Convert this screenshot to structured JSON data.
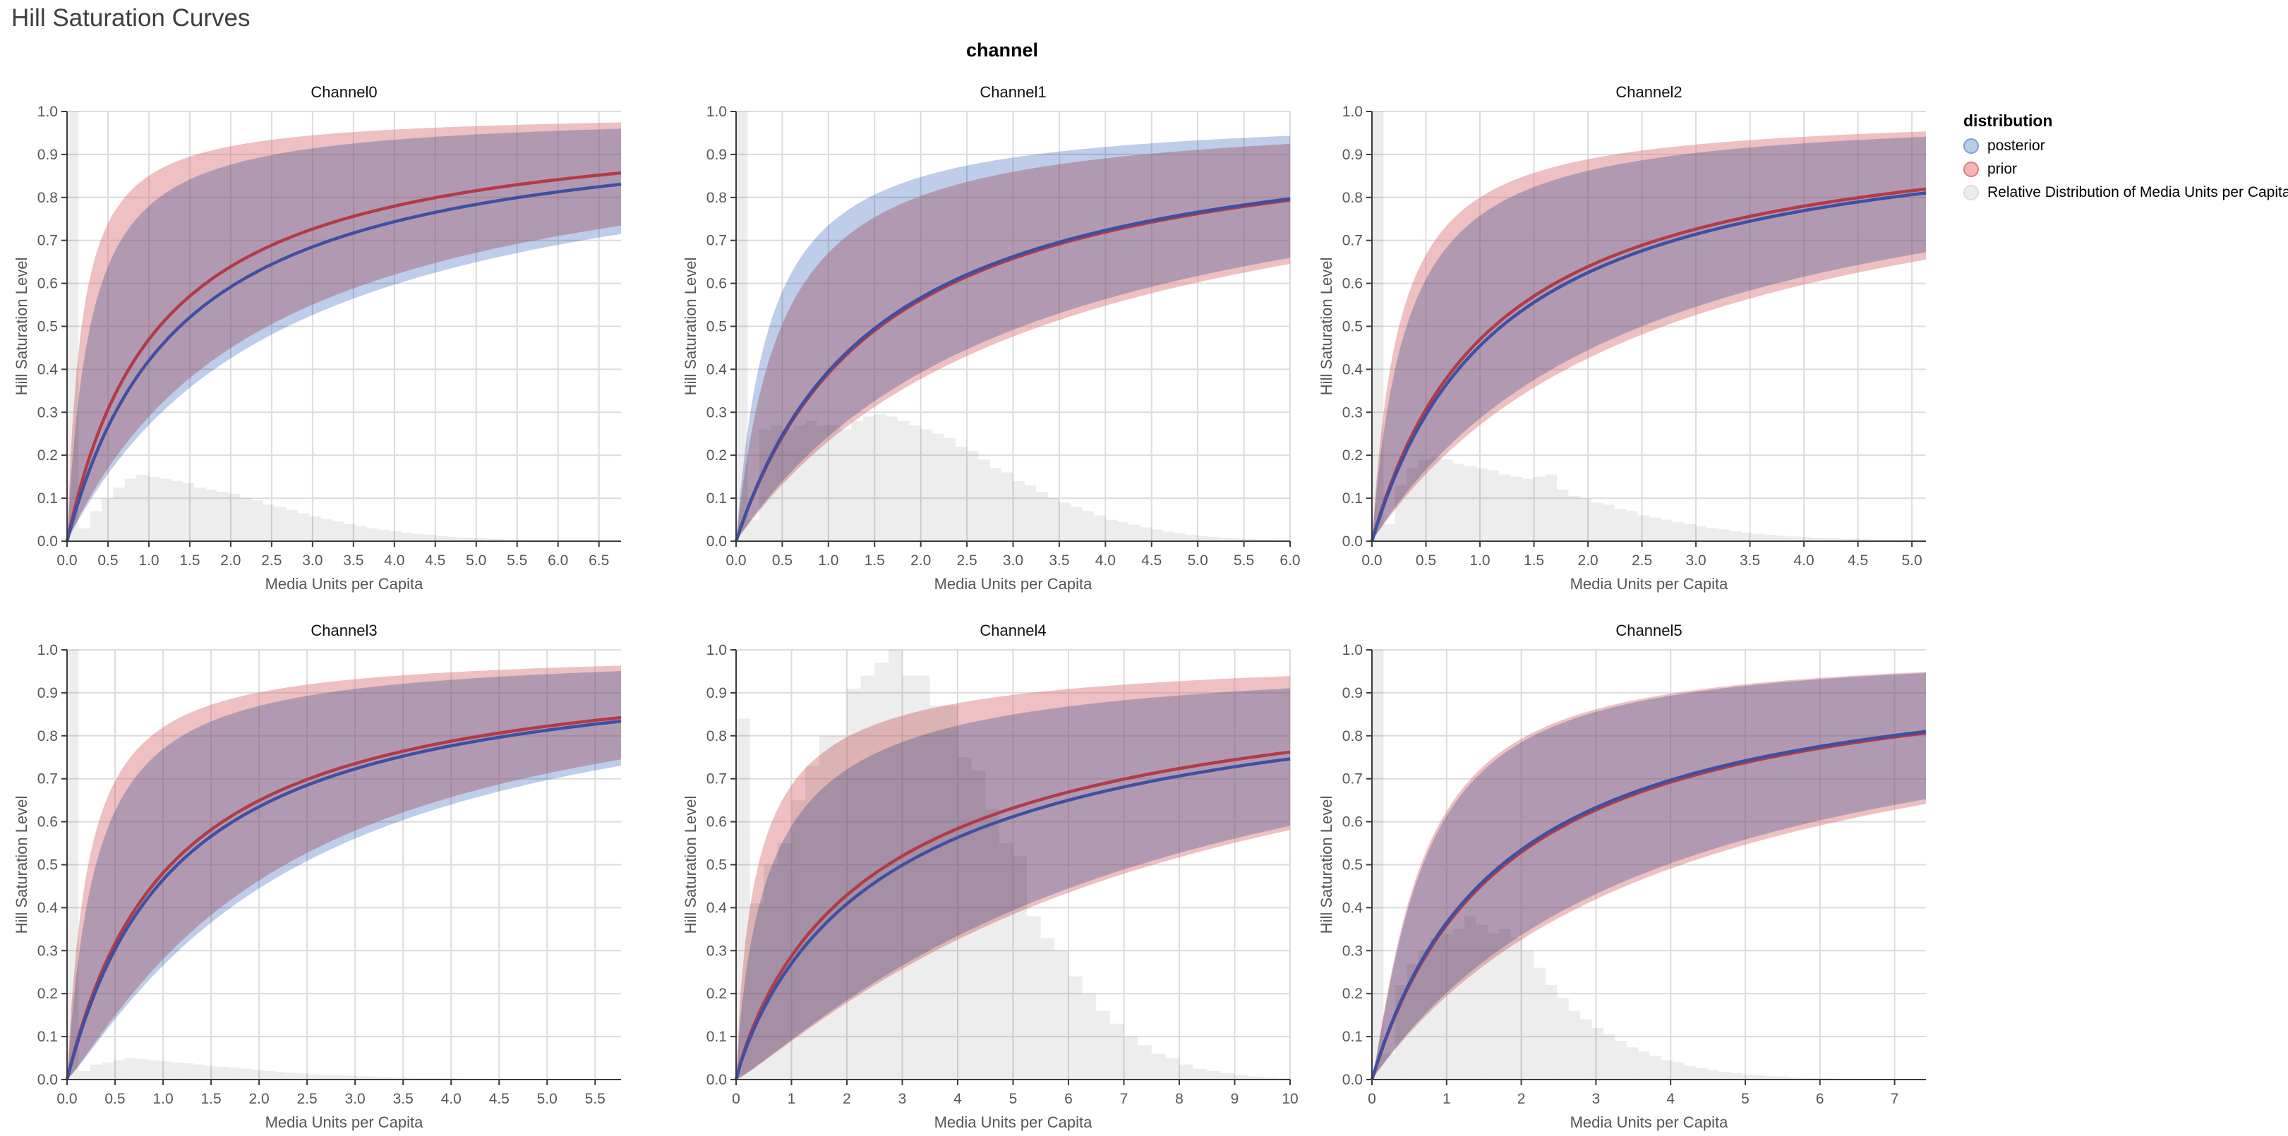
{
  "page_title": "Hill Saturation Curves",
  "facet_title": "channel",
  "legend": {
    "title": "distribution",
    "items": [
      {
        "label": "posterior",
        "fill": "#b9cdeb",
        "stroke": "#7e9fd0"
      },
      {
        "label": "prior",
        "fill": "#f2b7b4",
        "stroke": "#d97d7e"
      },
      {
        "label": "Relative Distribution of Media Units per Capita",
        "fill": "#ededed",
        "stroke": "#dcdcdc"
      }
    ]
  },
  "colors": {
    "prior_line": "#b23b47",
    "posterior_line": "#3f4fa3",
    "prior_band": "rgba(214,104,107,0.42)",
    "posterior_band": "rgba(100,136,204,0.42)",
    "histogram": "rgba(110,110,110,0.12)",
    "grid": "#dcdcdc",
    "axis": "#3b3b3b",
    "tick_label": "#565656"
  },
  "chart_data": {
    "type": "line",
    "title": "Hill Saturation Curves",
    "xlabel": "Media Units per Capita",
    "ylabel": "Hill Saturation Level",
    "ylim": [
      0,
      1
    ],
    "y_ticks": [
      0.0,
      0.1,
      0.2,
      0.3,
      0.4,
      0.5,
      0.6,
      0.7,
      0.8,
      0.9,
      1.0
    ],
    "legend_position": "top-right",
    "grid": true,
    "series_note": "Each panel: prior/posterior Hill curves y = x^s/(x^s+K) with credible bands, plus relative media-units histogram (heights are fractions of plot height).",
    "panels": [
      {
        "title": "Channel0",
        "x_max": 6.77,
        "x_ticks": [
          0,
          0.5,
          1,
          1.5,
          2,
          2.5,
          3,
          3.5,
          4,
          4.5,
          5,
          5.5,
          6,
          6.5
        ],
        "tick_decimals": 1,
        "curves": {
          "prior": {
            "mean": {
              "s": 1,
              "K": 1.13
            },
            "upper": {
              "s": 1,
              "K": 0.176
            },
            "lower": {
              "s": 1,
              "K": 2.45
            }
          },
          "posterior": {
            "mean": {
              "s": 1,
              "K": 1.38
            },
            "upper": {
              "s": 1,
              "K": 0.282
            },
            "lower": {
              "s": 1,
              "K": 2.7
            }
          }
        },
        "end_values": {
          "prior_mean": 0.85,
          "posterior_mean": 0.825
        },
        "histogram": {
          "bin_width": 0.141,
          "heights": [
            1,
            0.03,
            0.07,
            0.1,
            0.125,
            0.145,
            0.155,
            0.15,
            0.145,
            0.14,
            0.135,
            0.125,
            0.12,
            0.115,
            0.11,
            0.1,
            0.095,
            0.085,
            0.08,
            0.072,
            0.065,
            0.058,
            0.052,
            0.046,
            0.04,
            0.035,
            0.03,
            0.027,
            0.023,
            0.02,
            0.017,
            0.015,
            0.012,
            0.01,
            0.009,
            0.008,
            0.006,
            0.005,
            0.004,
            0.004,
            0.003,
            0.003,
            0.002,
            0.002,
            0.002,
            0.001,
            0.001,
            0.001
          ]
        }
      },
      {
        "title": "Channel1",
        "x_max": 6.0,
        "x_ticks": [
          0,
          0.5,
          1,
          1.5,
          2,
          2.5,
          3,
          3.5,
          4,
          4.5,
          5,
          5.5,
          6
        ],
        "tick_decimals": 1,
        "curves": {
          "prior": {
            "mean": {
              "s": 1,
              "K": 1.56
            },
            "upper": {
              "s": 1,
              "K": 0.49
            },
            "lower": {
              "s": 1,
              "K": 3.3
            }
          },
          "posterior": {
            "mean": {
              "s": 1,
              "K": 1.53
            },
            "upper": {
              "s": 1,
              "K": 0.36
            },
            "lower": {
              "s": 1,
              "K": 3.1
            }
          }
        },
        "end_values": {
          "prior_mean": 0.795,
          "posterior_mean": 0.797
        },
        "histogram": {
          "bin_width": 0.125,
          "heights": [
            1,
            0.05,
            0.26,
            0.27,
            0.26,
            0.27,
            0.28,
            0.27,
            0.27,
            0.26,
            0.28,
            0.29,
            0.295,
            0.29,
            0.28,
            0.27,
            0.26,
            0.25,
            0.24,
            0.22,
            0.21,
            0.19,
            0.17,
            0.16,
            0.14,
            0.13,
            0.115,
            0.1,
            0.09,
            0.08,
            0.07,
            0.06,
            0.05,
            0.045,
            0.038,
            0.032,
            0.027,
            0.022,
            0.018,
            0.015,
            0.012,
            0.01,
            0.008,
            0.006,
            0.005,
            0.004,
            0.003,
            0.002
          ]
        }
      },
      {
        "title": "Channel2",
        "x_max": 5.13,
        "x_ticks": [
          0,
          0.5,
          1,
          1.5,
          2,
          2.5,
          3,
          3.5,
          4,
          4.5,
          5
        ],
        "tick_decimals": 1,
        "curves": {
          "prior": {
            "mean": {
              "s": 1,
              "K": 1.13
            },
            "upper": {
              "s": 1,
              "K": 0.25
            },
            "lower": {
              "s": 1,
              "K": 2.7
            }
          },
          "posterior": {
            "mean": {
              "s": 1,
              "K": 1.2
            },
            "upper": {
              "s": 1,
              "K": 0.32
            },
            "lower": {
              "s": 1,
              "K": 2.5
            }
          }
        },
        "end_values": {
          "prior_mean": 0.82,
          "posterior_mean": 0.81
        },
        "histogram": {
          "bin_width": 0.107,
          "heights": [
            1,
            0.04,
            0.13,
            0.17,
            0.19,
            0.195,
            0.19,
            0.18,
            0.175,
            0.17,
            0.165,
            0.155,
            0.15,
            0.145,
            0.15,
            0.155,
            0.12,
            0.105,
            0.1,
            0.09,
            0.085,
            0.075,
            0.07,
            0.06,
            0.055,
            0.05,
            0.045,
            0.04,
            0.035,
            0.03,
            0.027,
            0.023,
            0.02,
            0.017,
            0.015,
            0.013,
            0.011,
            0.01,
            0.008,
            0.007,
            0.006,
            0.005,
            0.005,
            0.004,
            0.004,
            0.003,
            0.003,
            0.002
          ]
        }
      },
      {
        "title": "Channel3",
        "x_max": 5.77,
        "x_ticks": [
          0,
          0.5,
          1,
          1.5,
          2,
          2.5,
          3,
          3.5,
          4,
          4.5,
          5,
          5.5
        ],
        "tick_decimals": 1,
        "curves": {
          "prior": {
            "mean": {
              "s": 1,
              "K": 1.08
            },
            "upper": {
              "s": 1,
              "K": 0.22
            },
            "lower": {
              "s": 1.15,
              "K": 2.57
            }
          },
          "posterior": {
            "mean": {
              "s": 1,
              "K": 1.15
            },
            "upper": {
              "s": 1,
              "K": 0.3
            },
            "lower": {
              "s": 1.15,
              "K": 2.77
            }
          }
        },
        "end_values": {
          "prior_mean": 0.845,
          "posterior_mean": 0.838
        },
        "histogram": {
          "bin_width": 0.12,
          "heights": [
            1,
            0.02,
            0.035,
            0.04,
            0.045,
            0.05,
            0.048,
            0.045,
            0.042,
            0.04,
            0.038,
            0.035,
            0.032,
            0.03,
            0.028,
            0.025,
            0.023,
            0.02,
            0.018,
            0.016,
            0.014,
            0.012,
            0.011,
            0.01,
            0.009,
            0.008,
            0.007,
            0.006,
            0.005,
            0.005,
            0.004,
            0.004,
            0.003,
            0.003,
            0.002,
            0.002,
            0.002,
            0.001,
            0.001,
            0.001,
            0.001,
            0.001,
            0,
            0,
            0,
            0,
            0,
            0
          ]
        }
      },
      {
        "title": "Channel4",
        "x_max": 10.0,
        "x_ticks": [
          0,
          1,
          2,
          3,
          4,
          5,
          6,
          7,
          8,
          9,
          10
        ],
        "tick_decimals": 0,
        "curves": {
          "prior": {
            "mean": {
              "s": 0.9,
              "K": 2.48
            },
            "upper": {
              "s": 0.85,
              "K": 0.46
            },
            "lower": {
              "s": 1.15,
              "K": 10.2
            }
          },
          "posterior": {
            "mean": {
              "s": 0.9,
              "K": 2.7
            },
            "upper": {
              "s": 0.85,
              "K": 0.695
            },
            "lower": {
              "s": 1.15,
              "K": 9.8
            }
          }
        },
        "end_values": {
          "prior_mean": 0.765,
          "posterior_mean": 0.75
        },
        "histogram": {
          "bin_width": 0.25,
          "heights": [
            0.84,
            0.41,
            0.5,
            0.55,
            0.65,
            0.73,
            0.8,
            0.8,
            0.91,
            0.94,
            0.97,
            1.0,
            0.94,
            0.94,
            0.87,
            0.87,
            0.75,
            0.72,
            0.63,
            0.55,
            0.52,
            0.38,
            0.33,
            0.3,
            0.24,
            0.2,
            0.16,
            0.13,
            0.1,
            0.08,
            0.06,
            0.05,
            0.035,
            0.025,
            0.02,
            0.015,
            0.01,
            0.007,
            0.005,
            0.003
          ]
        }
      },
      {
        "title": "Channel5",
        "x_max": 7.42,
        "x_ticks": [
          0,
          1,
          2,
          3,
          4,
          5,
          6,
          7
        ],
        "tick_decimals": 0,
        "curves": {
          "prior": {
            "mean": {
              "s": 1,
              "K": 1.78
            },
            "upper": {
              "s": 1.2,
              "K": 0.6
            },
            "lower": {
              "s": 1,
              "K": 4.15
            }
          },
          "posterior": {
            "mean": {
              "s": 1,
              "K": 1.74
            },
            "upper": {
              "s": 1.2,
              "K": 0.63
            },
            "lower": {
              "s": 1,
              "K": 3.95
            }
          }
        },
        "end_values": {
          "prior_mean": 0.805,
          "posterior_mean": 0.81
        },
        "histogram": {
          "bin_width": 0.155,
          "heights": [
            1,
            0.06,
            0.22,
            0.27,
            0.3,
            0.33,
            0.34,
            0.35,
            0.38,
            0.36,
            0.34,
            0.35,
            0.33,
            0.3,
            0.26,
            0.22,
            0.19,
            0.16,
            0.14,
            0.12,
            0.105,
            0.09,
            0.075,
            0.065,
            0.055,
            0.045,
            0.04,
            0.032,
            0.027,
            0.022,
            0.018,
            0.015,
            0.012,
            0.01,
            0.008,
            0.007,
            0.005,
            0.004,
            0.003,
            0.003,
            0.002,
            0.002,
            0.001,
            0.001,
            0.001,
            0,
            0,
            0
          ]
        }
      }
    ]
  }
}
